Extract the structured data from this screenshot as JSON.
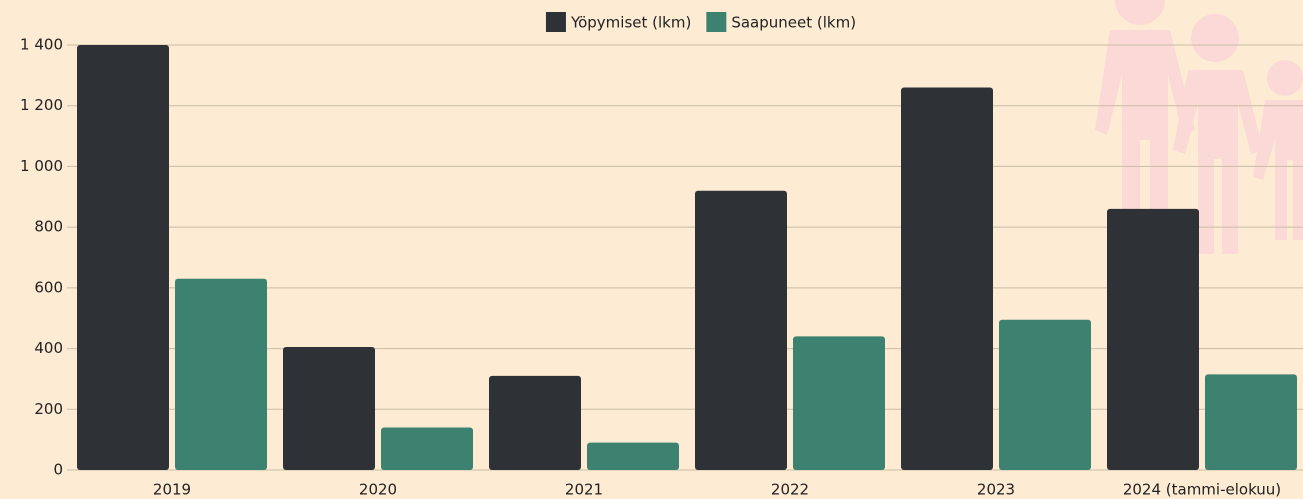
{
  "chart_data": {
    "type": "bar",
    "categories": [
      "2019",
      "2020",
      "2021",
      "2022",
      "2023",
      "2024 (tammi-elokuu)"
    ],
    "series": [
      {
        "name": "Yöpymiset (lkm)",
        "color": "#2e3236",
        "values": [
          1400,
          405,
          310,
          920,
          1260,
          860
        ]
      },
      {
        "name": "Saapuneet (lkm)",
        "color": "#3d8270",
        "values": [
          630,
          140,
          90,
          440,
          495,
          315
        ]
      }
    ],
    "ylim": [
      0,
      1400
    ],
    "yticks": [
      0,
      200,
      400,
      600,
      800,
      {
        "value": 1000,
        "label": "1 000"
      },
      {
        "value": 1200,
        "label": "1 200"
      },
      {
        "value": 1400,
        "label": "1 400"
      }
    ],
    "grid": true,
    "legend": "top"
  }
}
